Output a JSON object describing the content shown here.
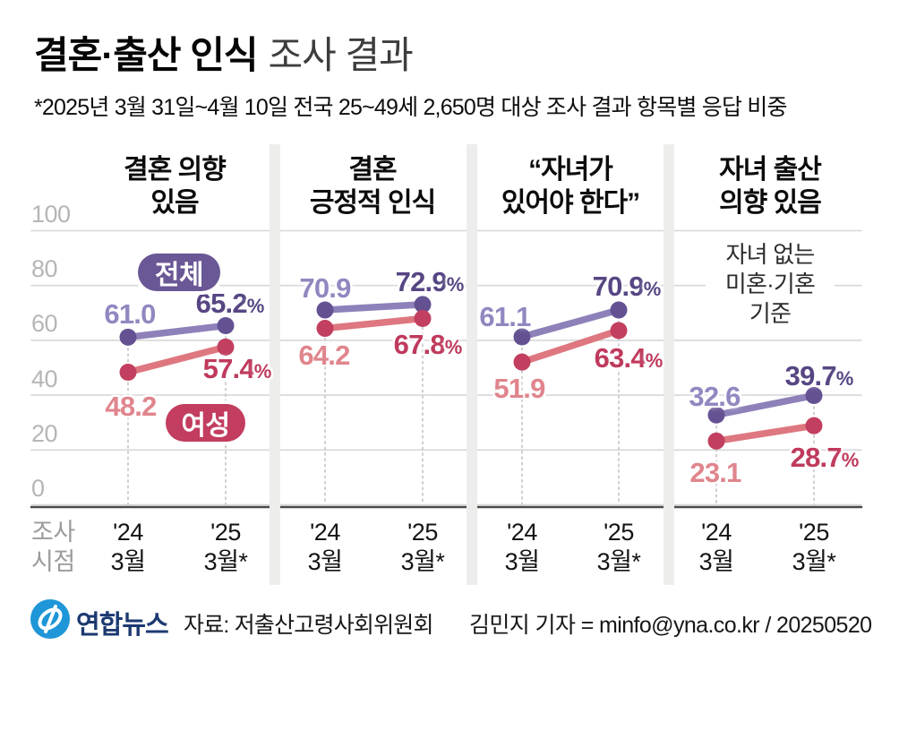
{
  "title": {
    "bold": "결혼·출산 인식",
    "light": "조사 결과"
  },
  "subtitle": "*2025년 3월 31일~4월 10일 전국 25~49세 2,650명 대상 조사 결과 항목별 응답 비중",
  "legend": {
    "total": "전체",
    "female": "여성"
  },
  "axis": {
    "y_ticks": [
      100,
      80,
      60,
      40,
      20,
      0
    ],
    "x_caption": "조사\n시점",
    "x_labels": [
      "'24\n3월",
      "'25\n3월*"
    ]
  },
  "chart_data": {
    "type": "line",
    "x": [
      "'24 3월",
      "'25 3월*"
    ],
    "ylim": [
      0,
      100
    ],
    "unit": "%",
    "grid": true,
    "legend_position": "inside-first-panel",
    "panels": [
      {
        "title": "결혼 의향\n있음",
        "series": [
          {
            "name": "전체",
            "values": [
              61.0,
              65.2
            ]
          },
          {
            "name": "여성",
            "values": [
              48.2,
              57.4
            ]
          }
        ]
      },
      {
        "title": "결혼\n긍정적 인식",
        "series": [
          {
            "name": "전체",
            "values": [
              70.9,
              72.9
            ]
          },
          {
            "name": "여성",
            "values": [
              64.2,
              67.8
            ]
          }
        ]
      },
      {
        "title": "“자녀가\n있어야 한다”",
        "series": [
          {
            "name": "전체",
            "values": [
              61.1,
              70.9
            ]
          },
          {
            "name": "여성",
            "values": [
              51.9,
              63.4
            ]
          }
        ]
      },
      {
        "title": "자녀 출산\n의향 있음",
        "note": "자녀 없는\n미혼·기혼 기준",
        "series": [
          {
            "name": "전체",
            "values": [
              32.6,
              39.7
            ]
          },
          {
            "name": "여성",
            "values": [
              23.1,
              28.7
            ]
          }
        ]
      }
    ]
  },
  "colors": {
    "total_line": "#8e81b9",
    "total_dot": "#635192",
    "total_text_dark": "#574683",
    "total_text_light": "#9287c0",
    "total_badge": "#6a5795",
    "female_line": "#de777f",
    "female_dot": "#c23f60",
    "female_text_dark": "#bf3a5c",
    "female_text_light": "#e0858d",
    "female_badge": "#c23d5f",
    "grid": "#d7d7d7",
    "axis_dark": "#4a4a4a",
    "dotted": "#c3c3c3",
    "logo_blue": "#1e96d8",
    "brand_navy": "#1c3a70"
  },
  "footer": {
    "brand": "연합뉴스",
    "source": "자료: 저출산고령사회위원회",
    "byline": "김민지 기자 = minfo@yna.co.kr / 20250520"
  }
}
